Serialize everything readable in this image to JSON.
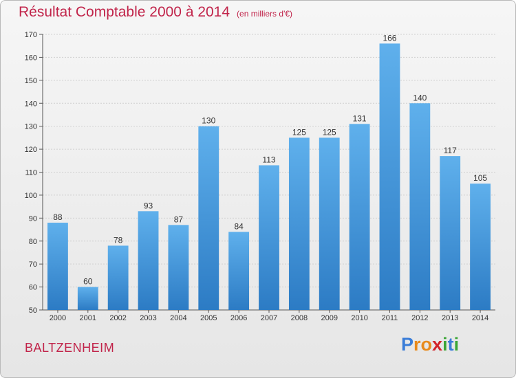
{
  "title": "Résultat Comptable 2000 à 2014",
  "unit_note": "(en milliers d'€)",
  "location": "BALTZENHEIM",
  "logo": {
    "letters": [
      "P",
      "r",
      "o",
      "x",
      "i",
      "t",
      "i"
    ],
    "colors": [
      "#3a7dd8",
      "#e88a1c",
      "#e88a1c",
      "#d2242a",
      "#3aa535",
      "#3a7dd8",
      "#3aa535"
    ]
  },
  "colors": {
    "bar": "#4a9ee0",
    "bar_dark": "#2c7bc4",
    "title": "#c1244a"
  },
  "chart_data": {
    "type": "bar",
    "title": "Résultat Comptable 2000 à 2014",
    "subtitle": "(en milliers d'€)",
    "xlabel": "",
    "ylabel": "",
    "categories": [
      "2000",
      "2001",
      "2002",
      "2003",
      "2004",
      "2005",
      "2006",
      "2007",
      "2008",
      "2009",
      "2010",
      "2011",
      "2012",
      "2013",
      "2014"
    ],
    "values": [
      88,
      60,
      78,
      93,
      87,
      130,
      84,
      113,
      125,
      125,
      131,
      166,
      140,
      117,
      105
    ],
    "ylim": [
      50,
      170
    ],
    "yticks": [
      50,
      60,
      70,
      80,
      90,
      100,
      110,
      120,
      130,
      140,
      150,
      160,
      170
    ],
    "grid": true
  }
}
